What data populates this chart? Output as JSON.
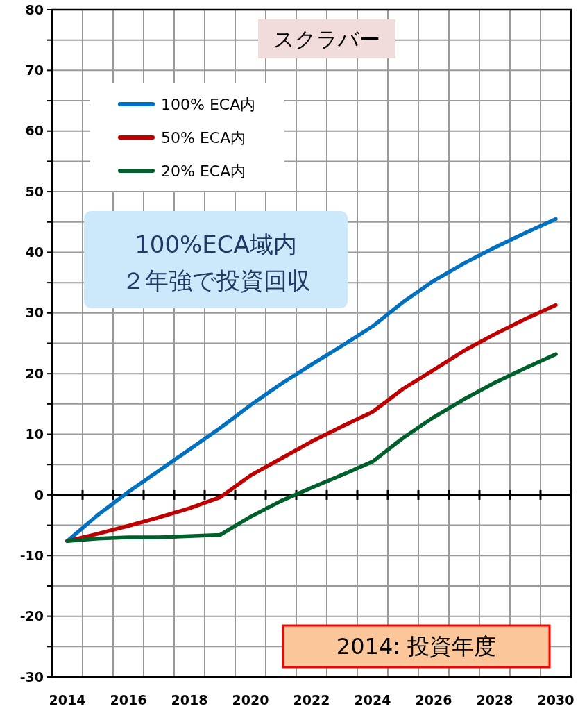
{
  "chart_data": {
    "type": "line",
    "title": "スクラバー",
    "x": [
      2014,
      2015,
      2016,
      2017,
      2018,
      2019,
      2020,
      2021,
      2022,
      2023,
      2024,
      2025,
      2026,
      2027,
      2028,
      2029,
      2030
    ],
    "series": [
      {
        "name": "100% ECA内",
        "color": "#0070c0",
        "values": [
          -7.6,
          -3.3,
          0.5,
          4,
          7.5,
          11,
          14.8,
          18.3,
          21.5,
          24.6,
          27.8,
          31.8,
          35.3,
          38.2,
          40.8,
          43.2,
          45.5
        ]
      },
      {
        "name": "50% ECA内",
        "color": "#c00000",
        "values": [
          -7.6,
          -6.4,
          -5.1,
          -3.7,
          -2.2,
          -0.4,
          3.2,
          6,
          8.8,
          11.3,
          13.7,
          17.5,
          20.6,
          23.8,
          26.5,
          29,
          31.3
        ]
      },
      {
        "name": "20% ECA内",
        "color": "#00602b",
        "values": [
          -7.6,
          -7.2,
          -7,
          -7,
          -6.8,
          -6.6,
          -3.6,
          -1,
          1.2,
          3.3,
          5.5,
          9.4,
          12.8,
          15.8,
          18.5,
          20.9,
          23.2
        ]
      }
    ],
    "xlim": [
      2013.5,
      2030.5
    ],
    "xticks": [
      {
        "value": 2013.5,
        "label": null
      },
      2014,
      {
        "value": 2014.5,
        "label": null
      },
      {
        "value": 2015.5,
        "label": null
      },
      2016,
      {
        "value": 2016.5,
        "label": null
      },
      {
        "value": 2017.5,
        "label": null
      },
      2018,
      {
        "value": 2018.5,
        "label": null
      },
      {
        "value": 2019.5,
        "label": null
      },
      2020,
      {
        "value": 2020.5,
        "label": null
      },
      {
        "value": 2021.5,
        "label": null
      },
      2022,
      {
        "value": 2022.5,
        "label": null
      },
      {
        "value": 2023.5,
        "label": null
      },
      2024,
      {
        "value": 2024.5,
        "label": null
      },
      {
        "value": 2025.5,
        "label": null
      },
      2026,
      {
        "value": 2026.5,
        "label": null
      },
      {
        "value": 2027.5,
        "label": null
      },
      2028,
      {
        "value": 2028.5,
        "label": null
      },
      {
        "value": 2029.5,
        "label": null
      },
      2030,
      {
        "value": 2030.5,
        "label": null
      }
    ],
    "ylim": [
      -30,
      80
    ],
    "yticks": [
      -30,
      {
        "value": -25,
        "label": null
      },
      -20,
      {
        "value": -15,
        "label": null
      },
      -10,
      {
        "value": -5,
        "label": null
      },
      0,
      {
        "value": 5,
        "label": null
      },
      10,
      {
        "value": 15,
        "label": null
      },
      20,
      {
        "value": 25,
        "label": null
      },
      30,
      {
        "value": 35,
        "label": null
      },
      40,
      {
        "value": 45,
        "label": null
      },
      50,
      {
        "value": 55,
        "label": null
      },
      60,
      {
        "value": 65,
        "label": null
      },
      70,
      {
        "value": 75,
        "label": null
      },
      80
    ],
    "grid": true,
    "legend": "top left",
    "marker": "none",
    "line_style": "solid",
    "annotations": [
      "100%ECA域内",
      "２年強で投資回収",
      "2014: 投資年度"
    ]
  }
}
